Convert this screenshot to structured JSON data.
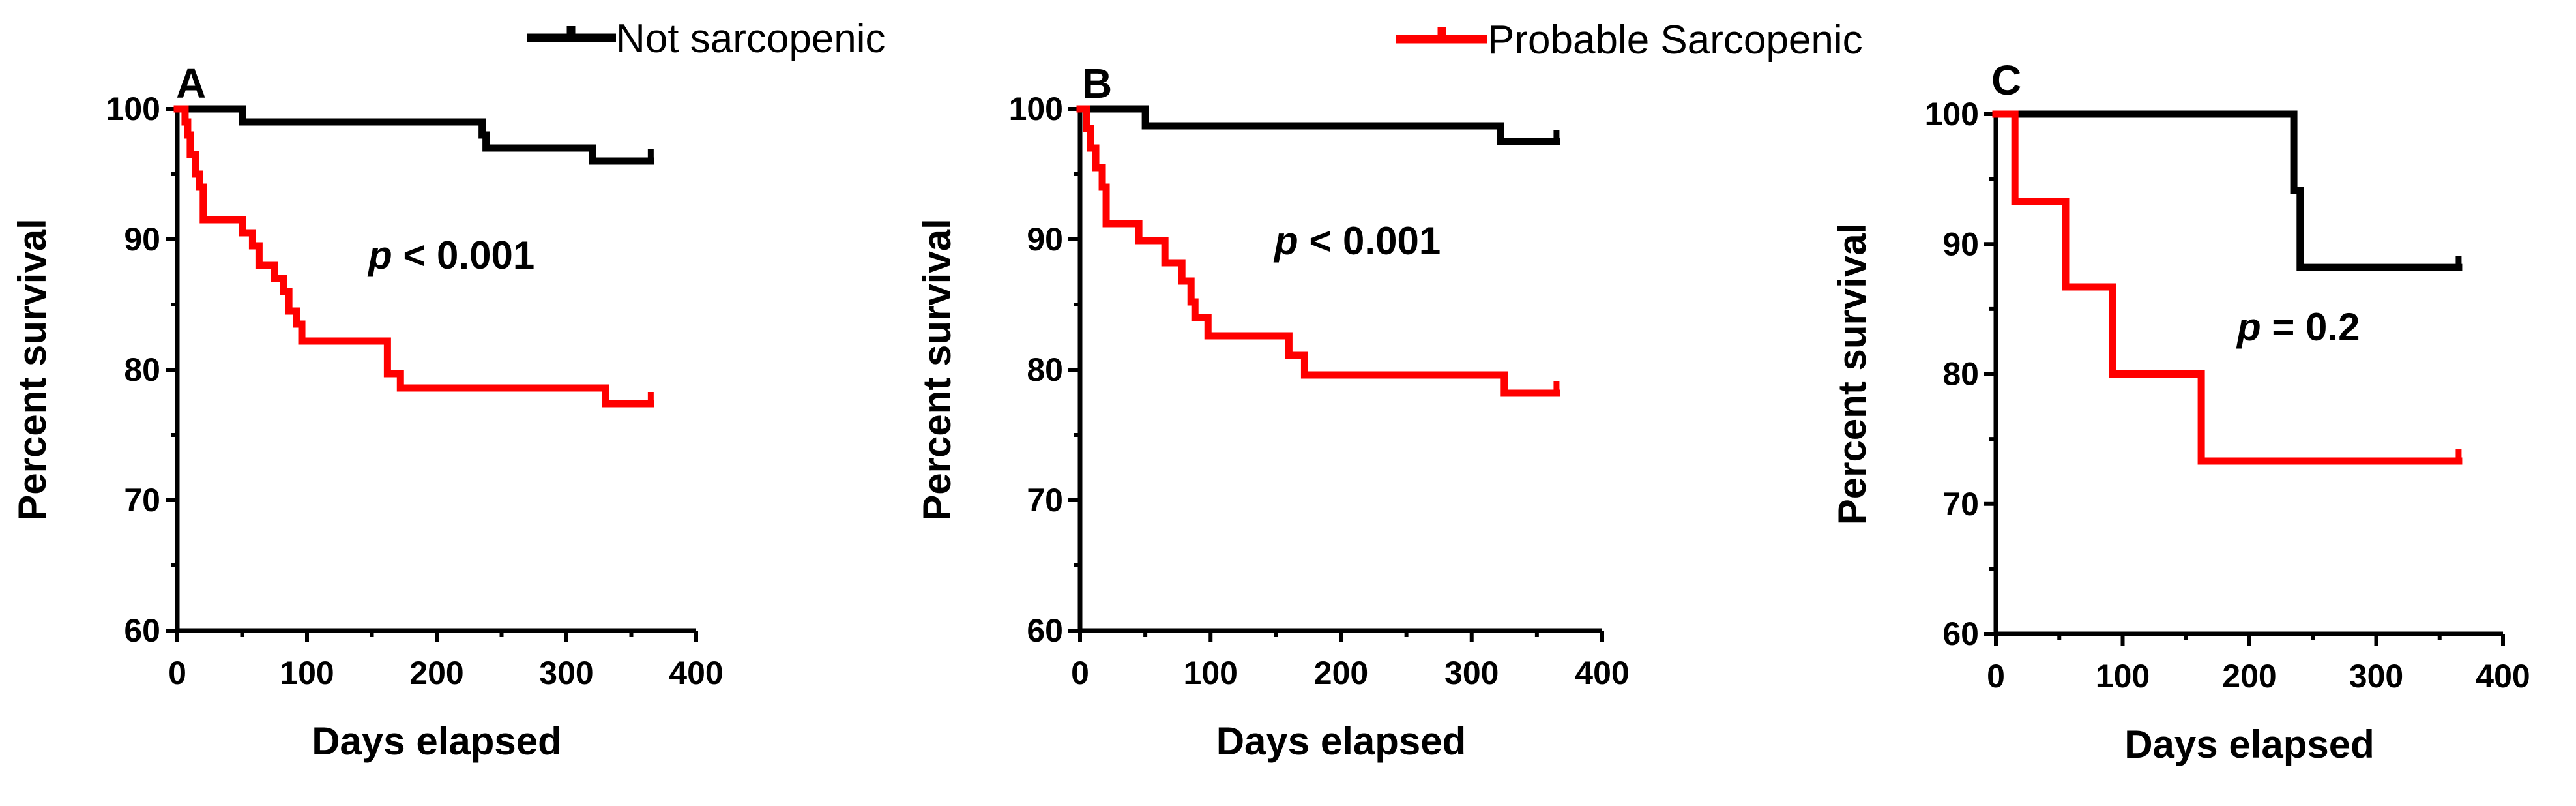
{
  "colors": {
    "not_sarcopenic": "#000000",
    "probable_sarcopenic": "#ff0000",
    "axis": "#000000"
  },
  "legend": [
    {
      "label": "Not sarcopenic",
      "color": "#000000"
    },
    {
      "label": "Probable Sarcopenic",
      "color": "#ff0000"
    }
  ],
  "chart_data": [
    {
      "type": "line",
      "subtype": "kaplan-meier",
      "panel": "A",
      "xlabel": "Days elapsed",
      "ylabel": "Percent survival",
      "xlim": [
        0,
        400
      ],
      "ylim": [
        60,
        100
      ],
      "xticks": [
        "0",
        "100",
        "200",
        "300",
        "400"
      ],
      "yticks": [
        "60",
        "70",
        "80",
        "90",
        "100"
      ],
      "annotation": {
        "p": "p",
        "rest": " < 0.001"
      },
      "series": [
        {
          "name": "Not sarcopenic",
          "color": "#000000",
          "points": [
            [
              0,
              100
            ],
            [
              50,
              100
            ],
            [
              50,
              99
            ],
            [
              235,
              99
            ],
            [
              235,
              98
            ],
            [
              238,
              98
            ],
            [
              238,
              97
            ],
            [
              320,
              97
            ],
            [
              320,
              96
            ],
            [
              365,
              96
            ]
          ],
          "censor": [
            [
              365,
              96.4
            ]
          ]
        },
        {
          "name": "Probable Sarcopenic",
          "color": "#ff0000",
          "points": [
            [
              0,
              100
            ],
            [
              6,
              100
            ],
            [
              6,
              99
            ],
            [
              8,
              99
            ],
            [
              8,
              98
            ],
            [
              10,
              98
            ],
            [
              10,
              96.5
            ],
            [
              14,
              96.5
            ],
            [
              14,
              95
            ],
            [
              17,
              95
            ],
            [
              17,
              94
            ],
            [
              20,
              94
            ],
            [
              20,
              91.5
            ],
            [
              50,
              91.5
            ],
            [
              50,
              90.5
            ],
            [
              58,
              90.5
            ],
            [
              58,
              89.5
            ],
            [
              63,
              89.5
            ],
            [
              63,
              88
            ],
            [
              75,
              88
            ],
            [
              75,
              87
            ],
            [
              82,
              87
            ],
            [
              82,
              86
            ],
            [
              86,
              86
            ],
            [
              86,
              84.5
            ],
            [
              92,
              84.5
            ],
            [
              92,
              83.5
            ],
            [
              96,
              83.5
            ],
            [
              96,
              82.2
            ],
            [
              162,
              82.2
            ],
            [
              162,
              79.7
            ],
            [
              172,
              79.7
            ],
            [
              172,
              78.6
            ],
            [
              330,
              78.6
            ],
            [
              330,
              77.4
            ],
            [
              365,
              77.4
            ]
          ],
          "censor": [
            [
              365,
              77.8
            ]
          ]
        }
      ]
    },
    {
      "type": "line",
      "subtype": "kaplan-meier",
      "panel": "B",
      "xlabel": "Days elapsed",
      "ylabel": "Percent survival",
      "xlim": [
        0,
        400
      ],
      "ylim": [
        60,
        100
      ],
      "xticks": [
        "0",
        "100",
        "200",
        "300",
        "400"
      ],
      "yticks": [
        "60",
        "70",
        "80",
        "90",
        "100"
      ],
      "annotation": {
        "p": "p",
        "rest": " < 0.001"
      },
      "series": [
        {
          "name": "Not sarcopenic",
          "color": "#000000",
          "points": [
            [
              0,
              100
            ],
            [
              50,
              100
            ],
            [
              50,
              98.7
            ],
            [
              322,
              98.7
            ],
            [
              322,
              97.5
            ],
            [
              365,
              97.5
            ]
          ],
          "censor": [
            [
              365,
              97.9
            ]
          ]
        },
        {
          "name": "Probable Sarcopenic",
          "color": "#ff0000",
          "points": [
            [
              0,
              100
            ],
            [
              5,
              100
            ],
            [
              5,
              98.5
            ],
            [
              8,
              98.5
            ],
            [
              8,
              97
            ],
            [
              12,
              97
            ],
            [
              12,
              95.5
            ],
            [
              17,
              95.5
            ],
            [
              17,
              94
            ],
            [
              20,
              94
            ],
            [
              20,
              91.2
            ],
            [
              45,
              91.2
            ],
            [
              45,
              89.9
            ],
            [
              65,
              89.9
            ],
            [
              65,
              88.2
            ],
            [
              78,
              88.2
            ],
            [
              78,
              86.8
            ],
            [
              85,
              86.8
            ],
            [
              85,
              85.2
            ],
            [
              88,
              85.2
            ],
            [
              88,
              84
            ],
            [
              98,
              84
            ],
            [
              98,
              82.6
            ],
            [
              160,
              82.6
            ],
            [
              160,
              81.1
            ],
            [
              172,
              81.1
            ],
            [
              172,
              79.6
            ],
            [
              325,
              79.6
            ],
            [
              325,
              78.2
            ],
            [
              365,
              78.2
            ]
          ],
          "censor": [
            [
              365,
              78.6
            ]
          ]
        }
      ]
    },
    {
      "type": "line",
      "subtype": "kaplan-meier",
      "panel": "C",
      "xlabel": "Days elapsed",
      "ylabel": "Percent survival",
      "xlim": [
        0,
        400
      ],
      "ylim": [
        60,
        100
      ],
      "xticks": [
        "0",
        "100",
        "200",
        "300",
        "400"
      ],
      "yticks": [
        "60",
        "70",
        "80",
        "90",
        "100"
      ],
      "annotation": {
        "p": "p",
        "rest": " = 0.2"
      },
      "series": [
        {
          "name": "Not sarcopenic",
          "color": "#000000",
          "points": [
            [
              0,
              100
            ],
            [
              235,
              100
            ],
            [
              235,
              94.1
            ],
            [
              240,
              94.1
            ],
            [
              240,
              88.2
            ],
            [
              365,
              88.2
            ]
          ],
          "censor": [
            [
              365,
              88.6
            ]
          ]
        },
        {
          "name": "Probable Sarcopenic",
          "color": "#ff0000",
          "points": [
            [
              0,
              100
            ],
            [
              15,
              100
            ],
            [
              15,
              93.3
            ],
            [
              55,
              93.3
            ],
            [
              55,
              86.7
            ],
            [
              92,
              86.7
            ],
            [
              92,
              80
            ],
            [
              162,
              80
            ],
            [
              162,
              73.3
            ],
            [
              365,
              73.3
            ]
          ],
          "censor": [
            [
              365,
              73.7
            ]
          ]
        }
      ]
    }
  ]
}
